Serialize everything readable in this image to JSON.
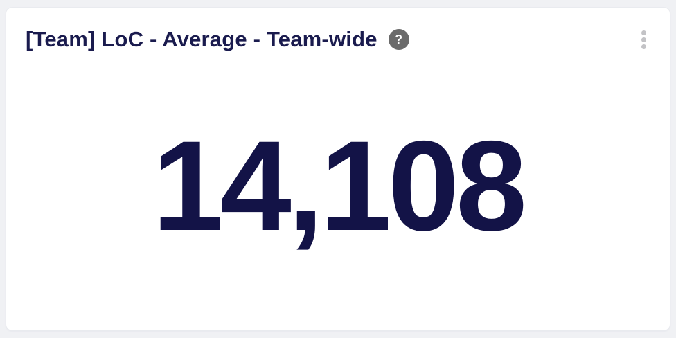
{
  "card": {
    "title": "[Team] LoC - Average - Team-wide",
    "value": "14,108",
    "help": {
      "glyph": "?"
    },
    "menu": {
      "icon": "kebab-vertical-dots"
    }
  },
  "colors": {
    "page_background": "#f0f1f4",
    "card_background": "#ffffff",
    "card_border": "#e9ebef",
    "title_navy": "#1a1b4e",
    "value_navy": "#131347",
    "help_icon_background": "#6b6b6b",
    "help_icon_glyph": "#ffffff",
    "kebab_dot_gray": "#c3c3c6"
  }
}
